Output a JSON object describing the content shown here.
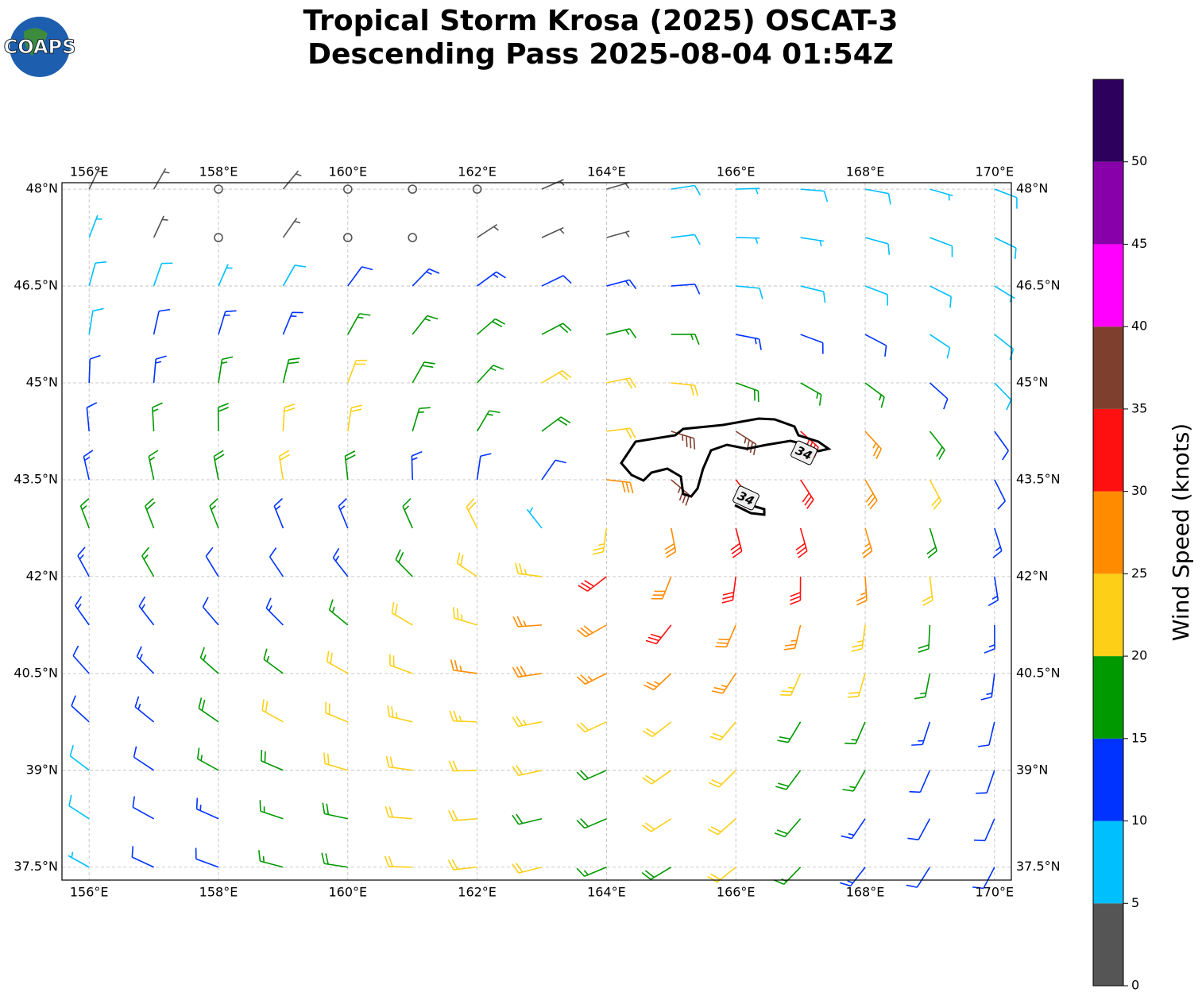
{
  "chart_data": {
    "type": "wind-barbs",
    "title": "Tropical Storm Krosa (2025) OSCAT-3",
    "subtitle": "Descending Pass 2025-08-04 01:54Z",
    "logo_text": "COAPS",
    "xlim": [
      155.58,
      170.26
    ],
    "ylim": [
      37.3,
      48.1
    ],
    "xticks": [
      {
        "value": 156,
        "label": "156°E"
      },
      {
        "value": 158,
        "label": "158°E"
      },
      {
        "value": 160,
        "label": "160°E"
      },
      {
        "value": 162,
        "label": "162°E"
      },
      {
        "value": 164,
        "label": "164°E"
      },
      {
        "value": 166,
        "label": "166°E"
      },
      {
        "value": 168,
        "label": "168°E"
      },
      {
        "value": 170,
        "label": "170°E"
      }
    ],
    "yticks": [
      {
        "value": 37.5,
        "label": "37.5°N"
      },
      {
        "value": 39,
        "label": "39°N"
      },
      {
        "value": 40.5,
        "label": "40.5°N"
      },
      {
        "value": 42,
        "label": "42°N"
      },
      {
        "value": 43.5,
        "label": "43.5°N"
      },
      {
        "value": 45,
        "label": "45°N"
      },
      {
        "value": 46.5,
        "label": "46.5°N"
      },
      {
        "value": 48,
        "label": "48°N"
      }
    ],
    "grid": true,
    "storm_center": [
      163.6,
      42.9
    ],
    "lons": [
      156,
      157,
      158,
      159,
      160,
      161,
      162,
      163,
      164,
      165,
      166,
      167,
      168,
      169,
      170
    ],
    "lats": [
      48,
      47.25,
      46.5,
      45.75,
      45,
      44.25,
      43.5,
      42.75,
      42,
      41.25,
      40.5,
      39.75,
      39,
      38.25,
      37.5
    ],
    "speeds": [
      [
        3,
        3,
        2,
        4,
        2,
        2,
        2,
        3,
        4,
        8,
        7,
        8,
        8,
        7,
        8
      ],
      [
        7,
        4,
        2,
        4,
        2,
        2,
        3,
        4,
        3,
        8,
        5,
        7,
        8,
        9,
        8
      ],
      [
        8,
        8,
        7,
        8,
        12,
        13,
        13,
        12,
        14,
        10,
        9,
        8,
        9,
        8,
        7
      ],
      [
        8,
        11,
        13,
        14,
        16,
        17,
        18,
        18,
        16,
        16,
        13,
        12,
        11,
        9,
        8
      ],
      [
        10,
        13,
        15,
        18,
        21,
        19,
        17,
        22,
        22,
        20,
        18,
        16,
        15,
        12,
        9
      ],
      [
        12,
        16,
        18,
        21,
        22,
        17,
        16,
        18,
        22,
        37,
        37,
        33,
        25,
        18,
        10
      ],
      [
        14,
        17,
        19,
        22,
        18,
        14,
        12,
        11,
        28,
        37,
        33,
        32,
        28,
        20,
        12
      ],
      [
        15,
        18,
        17,
        14,
        13,
        17,
        21,
        5,
        23,
        28,
        30,
        32,
        26,
        18,
        13
      ],
      [
        14,
        16,
        12,
        11,
        14,
        18,
        22,
        24,
        30,
        28,
        32,
        31,
        25,
        20,
        14
      ],
      [
        13,
        14,
        12,
        14,
        17,
        20,
        24,
        26,
        28,
        30,
        29,
        27,
        23,
        18,
        14
      ],
      [
        11,
        13,
        15,
        17,
        20,
        22,
        25,
        29,
        27,
        26,
        25,
        23,
        21,
        17,
        13
      ],
      [
        11,
        14,
        18,
        21,
        22,
        23,
        24,
        23,
        22,
        22,
        21,
        18,
        16,
        14,
        12
      ],
      [
        8,
        12,
        15,
        19,
        21,
        22,
        22,
        20,
        19,
        20,
        22,
        18,
        15,
        12,
        11
      ],
      [
        8,
        10,
        13,
        16,
        18,
        21,
        22,
        19,
        18,
        21,
        22,
        18,
        14,
        12,
        10
      ],
      [
        7,
        10,
        12,
        15,
        18,
        20,
        22,
        20,
        17,
        19,
        21,
        17,
        13,
        11,
        10
      ]
    ],
    "contour_labels": [
      "34",
      "34"
    ],
    "colorbar": {
      "label": "Wind Speed (knots)",
      "lim": [
        0,
        55
      ],
      "bounds": [
        0,
        5,
        10,
        15,
        20,
        25,
        30,
        35,
        40,
        45,
        50,
        55
      ],
      "colors": [
        "#555555",
        "#00bfff",
        "#0033ff",
        "#009900",
        "#fdd017",
        "#ff8c00",
        "#ff1010",
        "#7f3f2f",
        "#ff00ff",
        "#8800aa",
        "#2e005e"
      ],
      "ticks": [
        0,
        5,
        10,
        15,
        20,
        25,
        30,
        35,
        40,
        45,
        50
      ]
    }
  }
}
